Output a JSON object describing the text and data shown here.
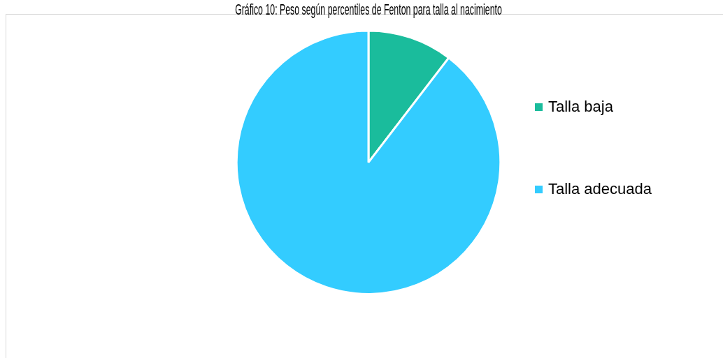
{
  "chart_data": {
    "type": "pie",
    "title": "Gráfico 10: Peso según percentiles de Fenton para talla al nacimiento",
    "categories": [
      "Talla baja",
      "Talla adecuada"
    ],
    "values": [
      10.4,
      89.6
    ],
    "colors": [
      "#1abc9c",
      "#33ccff"
    ],
    "legend": "right"
  }
}
